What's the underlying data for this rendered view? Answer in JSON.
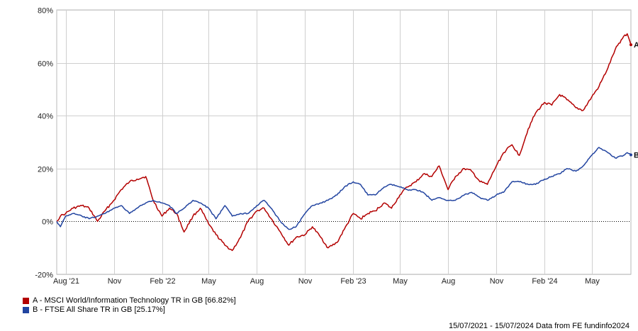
{
  "chart_data": {
    "type": "line",
    "title": "",
    "xlabel": "",
    "ylabel": "",
    "ylim": [
      -20,
      80
    ],
    "yticks": [
      -20,
      0,
      20,
      40,
      60,
      80
    ],
    "ytick_labels": [
      "-20%",
      "0%",
      "20%",
      "40%",
      "60%",
      "80%"
    ],
    "xlim": [
      "2021-07-15",
      "2024-07-15"
    ],
    "xticks": [
      {
        "date": "2021-08-01",
        "label": "Aug '21"
      },
      {
        "date": "2021-11-01",
        "label": "Nov"
      },
      {
        "date": "2022-02-01",
        "label": "Feb '22"
      },
      {
        "date": "2022-05-01",
        "label": "May"
      },
      {
        "date": "2022-08-01",
        "label": "Aug"
      },
      {
        "date": "2022-11-01",
        "label": "Nov"
      },
      {
        "date": "2023-02-01",
        "label": "Feb '23"
      },
      {
        "date": "2023-05-01",
        "label": "May"
      },
      {
        "date": "2023-08-01",
        "label": "Aug"
      },
      {
        "date": "2023-11-01",
        "label": "Nov"
      },
      {
        "date": "2024-02-01",
        "label": "Feb '24"
      },
      {
        "date": "2024-05-01",
        "label": "May"
      }
    ],
    "grid": true,
    "legend_position": "bottom-left",
    "series": [
      {
        "name": "A - MSCI World/Information Technology TR in GB [66.82%]",
        "end_label": "A",
        "color": "#b30000",
        "points": [
          [
            "2021-07-15",
            0
          ],
          [
            "2021-07-22",
            2
          ],
          [
            "2021-08-01",
            3
          ],
          [
            "2021-08-15",
            5
          ],
          [
            "2021-09-01",
            6
          ],
          [
            "2021-09-15",
            5
          ],
          [
            "2021-10-01",
            0
          ],
          [
            "2021-10-15",
            4
          ],
          [
            "2021-11-01",
            8
          ],
          [
            "2021-11-15",
            12
          ],
          [
            "2021-12-01",
            15
          ],
          [
            "2021-12-15",
            16
          ],
          [
            "2022-01-01",
            17
          ],
          [
            "2022-01-15",
            8
          ],
          [
            "2022-02-01",
            2
          ],
          [
            "2022-02-15",
            5
          ],
          [
            "2022-03-01",
            3
          ],
          [
            "2022-03-15",
            -4
          ],
          [
            "2022-04-01",
            2
          ],
          [
            "2022-04-15",
            5
          ],
          [
            "2022-05-01",
            -1
          ],
          [
            "2022-05-15",
            -5
          ],
          [
            "2022-06-01",
            -9
          ],
          [
            "2022-06-15",
            -11
          ],
          [
            "2022-07-01",
            -6
          ],
          [
            "2022-07-15",
            0
          ],
          [
            "2022-08-01",
            4
          ],
          [
            "2022-08-15",
            5
          ],
          [
            "2022-09-01",
            0
          ],
          [
            "2022-09-15",
            -4
          ],
          [
            "2022-10-01",
            -9
          ],
          [
            "2022-10-15",
            -6
          ],
          [
            "2022-11-01",
            -5
          ],
          [
            "2022-11-15",
            -2
          ],
          [
            "2022-12-01",
            -6
          ],
          [
            "2022-12-15",
            -10
          ],
          [
            "2023-01-01",
            -8
          ],
          [
            "2023-01-15",
            -3
          ],
          [
            "2023-02-01",
            3
          ],
          [
            "2023-02-15",
            1
          ],
          [
            "2023-03-01",
            3
          ],
          [
            "2023-03-15",
            4
          ],
          [
            "2023-04-01",
            7
          ],
          [
            "2023-04-15",
            5
          ],
          [
            "2023-05-01",
            10
          ],
          [
            "2023-05-15",
            13
          ],
          [
            "2023-06-01",
            15
          ],
          [
            "2023-06-15",
            18
          ],
          [
            "2023-07-01",
            17
          ],
          [
            "2023-07-15",
            21
          ],
          [
            "2023-08-01",
            12
          ],
          [
            "2023-08-15",
            17
          ],
          [
            "2023-09-01",
            20
          ],
          [
            "2023-09-15",
            19
          ],
          [
            "2023-10-01",
            15
          ],
          [
            "2023-10-15",
            14
          ],
          [
            "2023-11-01",
            21
          ],
          [
            "2023-11-15",
            26
          ],
          [
            "2023-12-01",
            29
          ],
          [
            "2023-12-15",
            25
          ],
          [
            "2024-01-01",
            35
          ],
          [
            "2024-01-15",
            41
          ],
          [
            "2024-02-01",
            45
          ],
          [
            "2024-02-15",
            44
          ],
          [
            "2024-03-01",
            48
          ],
          [
            "2024-03-15",
            46
          ],
          [
            "2024-04-01",
            43
          ],
          [
            "2024-04-15",
            42
          ],
          [
            "2024-05-01",
            47
          ],
          [
            "2024-05-15",
            51
          ],
          [
            "2024-06-01",
            58
          ],
          [
            "2024-06-15",
            65
          ],
          [
            "2024-07-01",
            70
          ],
          [
            "2024-07-08",
            71
          ],
          [
            "2024-07-15",
            66.82
          ]
        ]
      },
      {
        "name": "B - FTSE All Share TR in GB [25.17%]",
        "end_label": "B",
        "color": "#2244a0",
        "points": [
          [
            "2021-07-15",
            0
          ],
          [
            "2021-07-22",
            -2
          ],
          [
            "2021-08-01",
            2
          ],
          [
            "2021-08-15",
            3
          ],
          [
            "2021-09-01",
            2
          ],
          [
            "2021-09-15",
            1
          ],
          [
            "2021-10-01",
            2
          ],
          [
            "2021-10-15",
            3
          ],
          [
            "2021-11-01",
            5
          ],
          [
            "2021-11-15",
            6
          ],
          [
            "2021-12-01",
            3
          ],
          [
            "2021-12-15",
            5
          ],
          [
            "2022-01-01",
            7
          ],
          [
            "2022-01-15",
            8
          ],
          [
            "2022-02-01",
            7
          ],
          [
            "2022-02-15",
            6
          ],
          [
            "2022-03-01",
            3
          ],
          [
            "2022-03-15",
            5
          ],
          [
            "2022-04-01",
            8
          ],
          [
            "2022-04-15",
            7
          ],
          [
            "2022-05-01",
            5
          ],
          [
            "2022-05-15",
            1
          ],
          [
            "2022-06-01",
            6
          ],
          [
            "2022-06-15",
            2
          ],
          [
            "2022-07-01",
            3
          ],
          [
            "2022-07-15",
            3
          ],
          [
            "2022-08-01",
            6
          ],
          [
            "2022-08-15",
            8
          ],
          [
            "2022-09-01",
            4
          ],
          [
            "2022-09-15",
            0
          ],
          [
            "2022-10-01",
            -3
          ],
          [
            "2022-10-15",
            -2
          ],
          [
            "2022-11-01",
            3
          ],
          [
            "2022-11-15",
            6
          ],
          [
            "2022-12-01",
            7
          ],
          [
            "2022-12-15",
            8
          ],
          [
            "2023-01-01",
            10
          ],
          [
            "2023-01-15",
            13
          ],
          [
            "2023-02-01",
            15
          ],
          [
            "2023-02-15",
            14
          ],
          [
            "2023-03-01",
            10
          ],
          [
            "2023-03-15",
            10
          ],
          [
            "2023-04-01",
            13
          ],
          [
            "2023-04-15",
            14
          ],
          [
            "2023-05-01",
            13
          ],
          [
            "2023-05-15",
            12
          ],
          [
            "2023-06-01",
            12
          ],
          [
            "2023-06-15",
            11
          ],
          [
            "2023-07-01",
            8
          ],
          [
            "2023-07-15",
            9
          ],
          [
            "2023-08-01",
            8
          ],
          [
            "2023-08-15",
            8
          ],
          [
            "2023-09-01",
            10
          ],
          [
            "2023-09-15",
            11
          ],
          [
            "2023-10-01",
            9
          ],
          [
            "2023-10-15",
            8
          ],
          [
            "2023-11-01",
            10
          ],
          [
            "2023-11-15",
            11
          ],
          [
            "2023-12-01",
            15
          ],
          [
            "2023-12-15",
            15
          ],
          [
            "2024-01-01",
            14
          ],
          [
            "2024-01-15",
            14
          ],
          [
            "2024-02-01",
            16
          ],
          [
            "2024-02-15",
            17
          ],
          [
            "2024-03-01",
            18
          ],
          [
            "2024-03-15",
            20
          ],
          [
            "2024-04-01",
            19
          ],
          [
            "2024-04-15",
            21
          ],
          [
            "2024-05-01",
            25
          ],
          [
            "2024-05-15",
            28
          ],
          [
            "2024-06-01",
            26
          ],
          [
            "2024-06-15",
            24
          ],
          [
            "2024-07-01",
            25
          ],
          [
            "2024-07-08",
            26
          ],
          [
            "2024-07-15",
            25.17
          ]
        ]
      }
    ]
  },
  "legend": {
    "items": [
      {
        "label": "A - MSCI World/Information Technology TR in GB [66.82%]",
        "color": "#b30000"
      },
      {
        "label": "B - FTSE All Share TR in GB [25.17%]",
        "color": "#2244a0"
      }
    ]
  },
  "footer": {
    "text": "15/07/2021 - 15/07/2024 Data from FE fundinfo2024"
  }
}
